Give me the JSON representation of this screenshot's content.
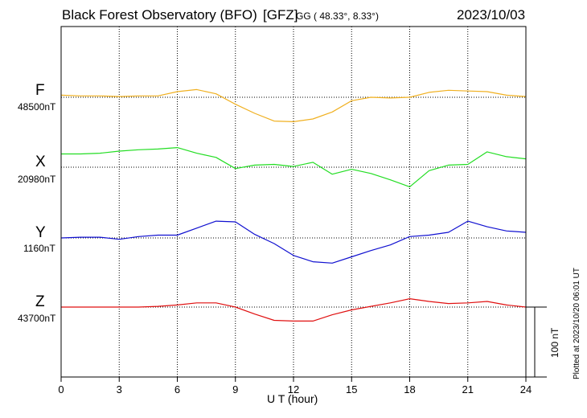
{
  "header": {
    "title": "Black Forest Observatory (BFO)",
    "gfz": "[GFZ]",
    "coords": "GG ( 48.33°,   8.33°)",
    "date": "2023/10/03"
  },
  "footer": {
    "plotted": "Plotted at 2023/10/20 06:01 UT",
    "scale_label": "100 nT"
  },
  "colors": {
    "F": "#f0b020",
    "X": "#22dd22",
    "Y": "#1010d0",
    "Z": "#e01010"
  },
  "chart_data": {
    "type": "line",
    "title": "Black Forest Observatory (BFO)",
    "xlabel": "U T (hour)",
    "ylabel": "",
    "xlim": [
      0,
      24
    ],
    "xticks": [
      0,
      3,
      6,
      9,
      12,
      15,
      18,
      21,
      24
    ],
    "x_tick_labels": [
      "0",
      "3",
      "6",
      "9",
      "12",
      "15",
      "18",
      "21",
      "24"
    ],
    "units_per_division_nT": 100,
    "x": [
      0,
      1,
      2,
      3,
      4,
      5,
      6,
      7,
      8,
      9,
      10,
      11,
      12,
      13,
      14,
      15,
      16,
      17,
      18,
      19,
      20,
      21,
      22,
      23,
      24
    ],
    "series": [
      {
        "name": "F",
        "baseline_label": "48500nT",
        "baseline": 48500,
        "values": [
          48503,
          48502,
          48502,
          48501,
          48502,
          48502,
          48508,
          48511,
          48505,
          48490,
          48477,
          48466,
          48465,
          48469,
          48479,
          48495,
          48500,
          48499,
          48500,
          48507,
          48510,
          48509,
          48508,
          48503,
          48501
        ]
      },
      {
        "name": "X",
        "baseline_label": "20980nT",
        "baseline": 20980,
        "values": [
          20999,
          20999,
          21000,
          21003,
          21005,
          21006,
          21008,
          21000,
          20994,
          20978,
          20983,
          20984,
          20981,
          20987,
          20970,
          20977,
          20971,
          20962,
          20952,
          20975,
          20983,
          20984,
          21002,
          20995,
          20992
        ]
      },
      {
        "name": "Y",
        "baseline_label": "1160nT",
        "baseline": 1160,
        "values": [
          1160,
          1161,
          1161,
          1158,
          1162,
          1164,
          1164,
          1174,
          1184,
          1183,
          1165,
          1152,
          1135,
          1126,
          1124,
          1133,
          1142,
          1150,
          1162,
          1164,
          1168,
          1184,
          1176,
          1170,
          1168
        ]
      },
      {
        "name": "Z",
        "baseline_label": "43700nT",
        "baseline": 43700,
        "values": [
          43700,
          43700,
          43700,
          43700,
          43700,
          43701,
          43703,
          43706,
          43706,
          43700,
          43690,
          43681,
          43680,
          43680,
          43689,
          43696,
          43701,
          43706,
          43712,
          43708,
          43705,
          43706,
          43708,
          43703,
          43700
        ]
      }
    ]
  }
}
